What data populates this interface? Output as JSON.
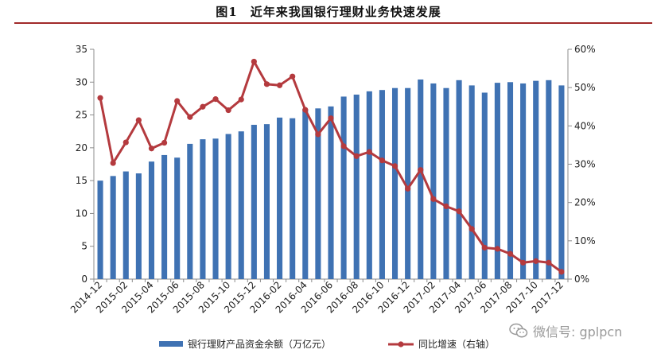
{
  "title": "图1　近年来我国银行理财业务快速发展",
  "watermark": "微信号: gplpcn",
  "colors": {
    "bars": "#3f72b3",
    "line": "#b43a3e",
    "rule": "#a12a2a"
  },
  "chart_data": {
    "type": "bar",
    "title": "图1　近年来我国银行理财业务快速发展",
    "categories": [
      "2014-12",
      "2015-01",
      "2015-02",
      "2015-03",
      "2015-04",
      "2015-05",
      "2015-06",
      "2015-07",
      "2015-08",
      "2015-09",
      "2015-10",
      "2015-11",
      "2015-12",
      "2016-01",
      "2016-02",
      "2016-03",
      "2016-04",
      "2016-05",
      "2016-06",
      "2016-07",
      "2016-08",
      "2016-09",
      "2016-10",
      "2016-11",
      "2016-12",
      "2017-01",
      "2017-02",
      "2017-03",
      "2017-04",
      "2017-05",
      "2017-06",
      "2017-07",
      "2017-08",
      "2017-09",
      "2017-10",
      "2017-11",
      "2017-12"
    ],
    "x_tick_labels": [
      "2014-12",
      "2015-02",
      "2015-04",
      "2015-06",
      "2015-08",
      "2015-10",
      "2015-12",
      "2016-02",
      "2016-04",
      "2016-06",
      "2016-08",
      "2016-10",
      "2016-12",
      "2017-02",
      "2017-04",
      "2017-06",
      "2017-08",
      "2017-10",
      "2017-12"
    ],
    "series": [
      {
        "name": "银行理财产品资金余额（万亿元）",
        "type": "bar",
        "axis": "left",
        "values": [
          15.0,
          15.7,
          16.4,
          16.1,
          17.9,
          18.9,
          18.5,
          20.6,
          21.3,
          21.4,
          22.1,
          22.5,
          23.5,
          23.6,
          24.6,
          24.5,
          25.9,
          26.0,
          26.3,
          27.8,
          28.1,
          28.6,
          28.8,
          29.1,
          29.1,
          30.4,
          29.8,
          29.1,
          30.3,
          29.5,
          28.4,
          29.9,
          30.0,
          29.8,
          30.2,
          30.3,
          29.5
        ]
      },
      {
        "name": "同比增速（右轴）",
        "type": "line",
        "axis": "right",
        "values": [
          0.473,
          0.303,
          0.357,
          0.415,
          0.341,
          0.356,
          0.465,
          0.423,
          0.45,
          0.47,
          0.441,
          0.469,
          0.568,
          0.509,
          0.506,
          0.529,
          0.442,
          0.378,
          0.42,
          0.347,
          0.321,
          0.332,
          0.31,
          0.295,
          0.236,
          0.285,
          0.209,
          0.19,
          0.177,
          0.131,
          0.082,
          0.079,
          0.066,
          0.043,
          0.047,
          0.043,
          0.019
        ]
      }
    ],
    "y_left": {
      "ylim": [
        0,
        35
      ],
      "ticks": [
        "0",
        "5",
        "10",
        "15",
        "20",
        "25",
        "30",
        "35"
      ]
    },
    "y_right": {
      "ylim": [
        0,
        0.6
      ],
      "ticks": [
        "0%",
        "10%",
        "20%",
        "30%",
        "40%",
        "50%",
        "60%"
      ]
    },
    "grid": false,
    "legend_position": "bottom"
  }
}
